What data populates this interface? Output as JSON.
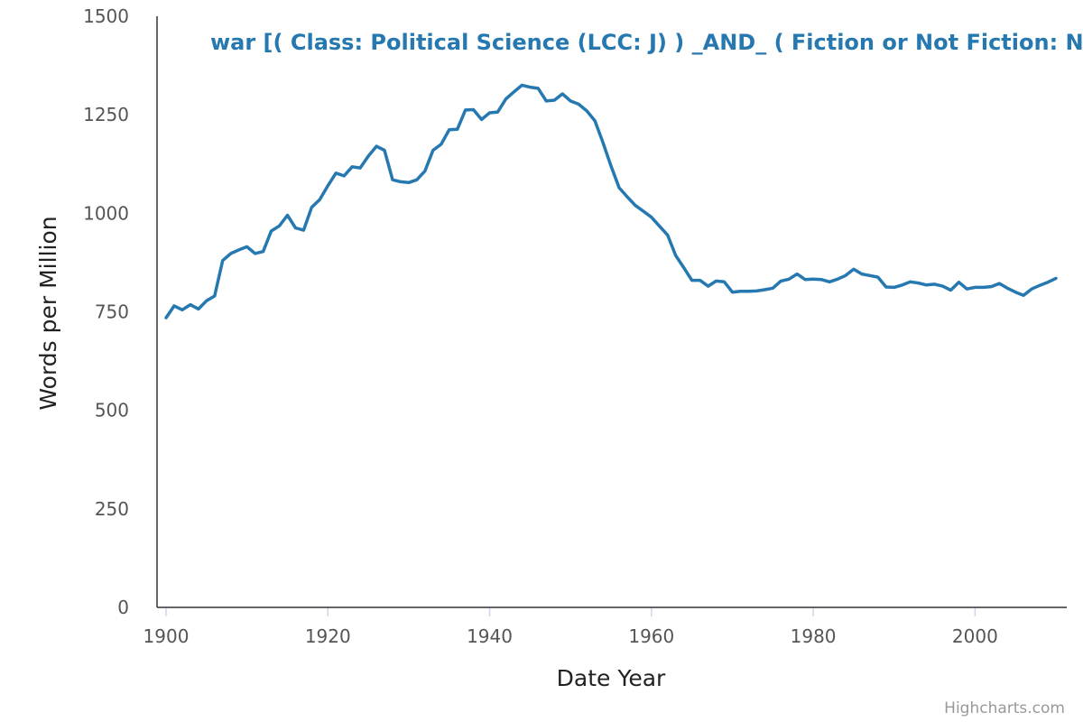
{
  "chart_data": {
    "type": "line",
    "title": "",
    "xlabel": "Date Year",
    "ylabel": "Words per Million",
    "xlim": [
      1900,
      2010
    ],
    "ylim": [
      0,
      1500
    ],
    "x_ticks": [
      "1900",
      "1920",
      "1940",
      "1960",
      "1980",
      "2000"
    ],
    "y_ticks": [
      "0",
      "250",
      "500",
      "750",
      "1000",
      "1250",
      "1500"
    ],
    "grid": false,
    "legend_position": "top",
    "series_color": "#2678b0",
    "series": [
      {
        "name": "war [( Class: Political Science (LCC: J) ) _AND_ ( Fiction or Not Fiction: Not Fiction )]",
        "x": [
          1900,
          1901,
          1902,
          1903,
          1904,
          1905,
          1906,
          1907,
          1908,
          1909,
          1910,
          1911,
          1912,
          1913,
          1914,
          1915,
          1916,
          1917,
          1918,
          1919,
          1920,
          1921,
          1922,
          1923,
          1924,
          1925,
          1926,
          1927,
          1928,
          1929,
          1930,
          1931,
          1932,
          1933,
          1934,
          1935,
          1936,
          1937,
          1938,
          1939,
          1940,
          1941,
          1942,
          1943,
          1944,
          1945,
          1946,
          1947,
          1948,
          1949,
          1950,
          1951,
          1952,
          1953,
          1954,
          1955,
          1956,
          1957,
          1958,
          1959,
          1960,
          1961,
          1962,
          1963,
          1964,
          1965,
          1966,
          1967,
          1968,
          1969,
          1970,
          1971,
          1972,
          1973,
          1974,
          1975,
          1976,
          1977,
          1978,
          1979,
          1980,
          1981,
          1982,
          1983,
          1984,
          1985,
          1986,
          1987,
          1988,
          1989,
          1990,
          1991,
          1992,
          1993,
          1994,
          1995,
          1996,
          1997,
          1998,
          1999,
          2000,
          2001,
          2002,
          2003,
          2004,
          2005,
          2006,
          2007,
          2008,
          2009,
          2010
        ],
        "values": [
          735,
          765,
          755,
          768,
          757,
          778,
          790,
          880,
          898,
          907,
          915,
          898,
          903,
          955,
          968,
          995,
          963,
          957,
          1015,
          1035,
          1070,
          1102,
          1095,
          1118,
          1115,
          1145,
          1170,
          1160,
          1085,
          1080,
          1078,
          1085,
          1107,
          1160,
          1175,
          1212,
          1213,
          1262,
          1263,
          1238,
          1255,
          1257,
          1290,
          1308,
          1325,
          1320,
          1317,
          1285,
          1287,
          1303,
          1285,
          1277,
          1260,
          1235,
          1180,
          1120,
          1065,
          1042,
          1020,
          1005,
          990,
          967,
          945,
          893,
          862,
          830,
          830,
          815,
          828,
          826,
          800,
          802,
          802,
          803,
          806,
          810,
          828,
          833,
          846,
          832,
          833,
          832,
          826,
          833,
          842,
          858,
          846,
          842,
          838,
          813,
          812,
          818,
          826,
          823,
          818,
          820,
          815,
          805,
          825,
          808,
          812,
          812,
          814,
          822,
          810,
          800,
          792,
          808,
          817,
          825,
          835
        ]
      }
    ]
  },
  "credits": "Highcharts.com"
}
